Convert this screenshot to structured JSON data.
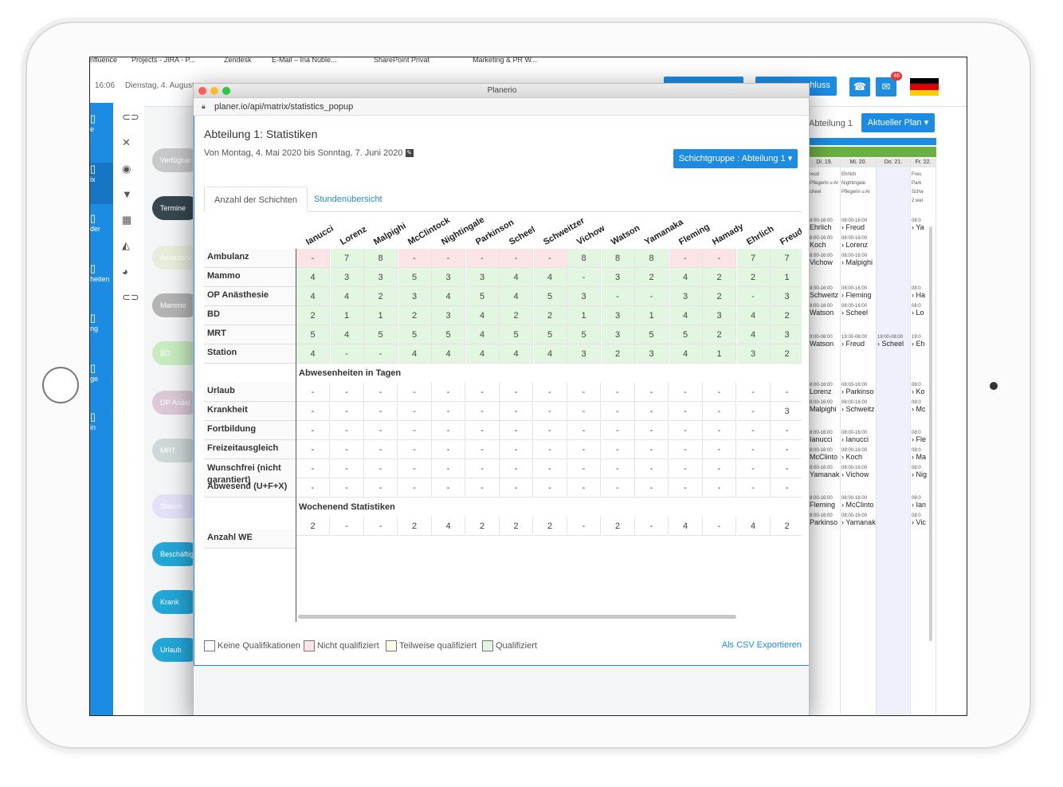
{
  "bookmarks": [
    "nfluence",
    "Projects - JIRA - P...",
    "Zendesk",
    "E-Mail – Ina Nüble...",
    "SharePoint Privat",
    "Marketing & PR W..."
  ],
  "header": {
    "time": "16:06",
    "date": "Dienstag, 4. August",
    "btn_right_label": "hluss",
    "mail_badge": "46"
  },
  "leftnav": [
    "e",
    "ix",
    "der",
    "heiten",
    "ng",
    "ge",
    "in"
  ],
  "pills": [
    {
      "label": "Verfügbar",
      "color": "#c9c9c9"
    },
    {
      "label": "Termine",
      "color": "#36474f"
    },
    {
      "label": "Ambulanz",
      "color": "#e8eddb"
    },
    {
      "label": "Mammo",
      "color": "#b3b3b3"
    },
    {
      "label": "BD",
      "color": "#c8ecc0"
    },
    {
      "label": "OP Anäst",
      "color": "#dcc8d6"
    },
    {
      "label": "MRT",
      "color": "#cfd8d8"
    },
    {
      "label": "Station",
      "color": "#e3e0f8"
    },
    {
      "label": "Beschäftigun",
      "color": "#23a7d8"
    },
    {
      "label": "Krank",
      "color": "#23a7d8"
    },
    {
      "label": "Urlaub",
      "color": "#23a7d8"
    }
  ],
  "calendar": {
    "title": "Abteilung 1",
    "plan_button": "Aktueller Plan ▾",
    "days": [
      "Di. 19.",
      "Mi. 20.",
      "Do. 21.",
      "Fr. 22."
    ],
    "notes_col1": [
      "reud",
      "Pflegerin u Ar",
      "cheel"
    ],
    "notes_col2": [
      "Ehrlich",
      "Nightingale",
      "Pflegerin u Ar"
    ],
    "notes_col4": [
      "Freu",
      "Park",
      "Schw",
      "2 wei"
    ],
    "entries": [
      {
        "col": 0,
        "row": 0,
        "time": "8:00-16:00",
        "name": "Ehrlich"
      },
      {
        "col": 0,
        "row": 1,
        "time": "8:00-16:00",
        "name": "Koch"
      },
      {
        "col": 0,
        "row": 2,
        "time": "8:00-16:00",
        "name": "Vichow"
      },
      {
        "col": 1,
        "row": 0,
        "time": "08:00-16:00",
        "name": "› Freud"
      },
      {
        "col": 1,
        "row": 1,
        "time": "08:00-16:00",
        "name": "› Lorenz"
      },
      {
        "col": 1,
        "row": 2,
        "time": "08:00-16:00",
        "name": "› Malpighi"
      },
      {
        "col": 3,
        "row": 0,
        "time": "08:0",
        "name": "› Ya"
      },
      {
        "col": 0,
        "row": 3,
        "time": "8:00-16:00",
        "name": "Schweitz"
      },
      {
        "col": 0,
        "row": 4,
        "time": "8:00-16:00",
        "name": "Watson"
      },
      {
        "col": 1,
        "row": 3,
        "time": "08:00-16:00",
        "name": "› Fleming"
      },
      {
        "col": 1,
        "row": 4,
        "time": "08:00-16:00",
        "name": "› Scheel"
      },
      {
        "col": 3,
        "row": 3,
        "time": "08:0",
        "name": "› Ha"
      },
      {
        "col": 3,
        "row": 4,
        "time": "08:0",
        "name": "› Lo"
      },
      {
        "col": 0,
        "row": 5,
        "time": "9:00-08:00",
        "name": "Watson"
      },
      {
        "col": 1,
        "row": 5,
        "time": "19:00-08:00",
        "name": "› Freud"
      },
      {
        "col": 2,
        "row": 5,
        "time": "19:00-08:00",
        "name": "› Scheel"
      },
      {
        "col": 3,
        "row": 5,
        "time": "19:0",
        "name": "› Eh"
      },
      {
        "col": 0,
        "row": 6,
        "time": "8:00-16:00",
        "name": "Lorenz"
      },
      {
        "col": 0,
        "row": 7,
        "time": "8:00-16:00",
        "name": "Malpighi"
      },
      {
        "col": 1,
        "row": 6,
        "time": "08:00-16:00",
        "name": "› Parkinso"
      },
      {
        "col": 1,
        "row": 7,
        "time": "08:00-16:00",
        "name": "› Schweitz"
      },
      {
        "col": 3,
        "row": 6,
        "time": "08:0",
        "name": "› Ko"
      },
      {
        "col": 3,
        "row": 7,
        "time": "08:0",
        "name": "› Mc"
      },
      {
        "col": 0,
        "row": 8,
        "time": "8:00-16:00",
        "name": "Ianucci"
      },
      {
        "col": 0,
        "row": 9,
        "time": "8:00-16:00",
        "name": "McClinto"
      },
      {
        "col": 0,
        "row": 10,
        "time": "8:00-16:00",
        "name": "Yamanak"
      },
      {
        "col": 1,
        "row": 8,
        "time": "08:00-16:00",
        "name": "› Ianucci"
      },
      {
        "col": 1,
        "row": 9,
        "time": "08:00-16:00",
        "name": "› Koch"
      },
      {
        "col": 1,
        "row": 10,
        "time": "08:00-16:00",
        "name": "› Vichow"
      },
      {
        "col": 3,
        "row": 8,
        "time": "08:0",
        "name": "› Fle"
      },
      {
        "col": 3,
        "row": 9,
        "time": "08:0",
        "name": "› Ma"
      },
      {
        "col": 3,
        "row": 10,
        "time": "08:0",
        "name": "› Nig"
      },
      {
        "col": 0,
        "row": 11,
        "time": "8:00-16:00",
        "name": "Fleming"
      },
      {
        "col": 0,
        "row": 12,
        "time": "8:00-16:00",
        "name": "Parkinso"
      },
      {
        "col": 1,
        "row": 11,
        "time": "08:00-16:00",
        "name": "› McClinto"
      },
      {
        "col": 1,
        "row": 12,
        "time": "08:00-16:00",
        "name": "› Yamanak"
      },
      {
        "col": 3,
        "row": 11,
        "time": "08:0",
        "name": "› Ian"
      },
      {
        "col": 3,
        "row": 12,
        "time": "08:0",
        "name": "› Vic"
      }
    ]
  },
  "popup": {
    "window_title": "Planerio",
    "url": "planer.io/api/matrix/statistics_popup",
    "title": "Abteilung 1: Statistiken",
    "subtitle": "Von Montag, 4. Mai 2020 bis Sonntag, 7. Juni 2020",
    "group_button": "Schichtgruppe : Abteilung 1 ▾",
    "tabs": [
      "Anzahl der Schichten",
      "Stundenübersicht"
    ],
    "employees": [
      "Ianucci",
      "Lorenz",
      "Malpighi",
      "McClintock",
      "Nightingale",
      "Parkinson",
      "Scheel",
      "Schweitzer",
      "Vichow",
      "Watson",
      "Yamanaka",
      "Fleming",
      "Hamady",
      "Ehrlich",
      "Freud"
    ],
    "shift_rows": [
      {
        "label": "Ambulanz",
        "values": [
          "-",
          "7",
          "8",
          "-",
          "-",
          "-",
          "-",
          "-",
          "8",
          "8",
          "8",
          "-",
          "-",
          "7",
          "7"
        ],
        "status": [
          "r",
          "g",
          "g",
          "r",
          "r",
          "r",
          "r",
          "r",
          "g",
          "g",
          "g",
          "r",
          "r",
          "g",
          "g"
        ]
      },
      {
        "label": "Mammo",
        "values": [
          "4",
          "3",
          "3",
          "5",
          "3",
          "3",
          "4",
          "4",
          "-",
          "3",
          "2",
          "4",
          "2",
          "2",
          "1"
        ],
        "status": [
          "g",
          "g",
          "g",
          "g",
          "g",
          "g",
          "g",
          "g",
          "g",
          "g",
          "g",
          "g",
          "g",
          "g",
          "g"
        ]
      },
      {
        "label": "OP Anästhesie",
        "values": [
          "4",
          "4",
          "2",
          "3",
          "4",
          "5",
          "4",
          "5",
          "3",
          "-",
          "-",
          "3",
          "2",
          "-",
          "3"
        ],
        "status": [
          "g",
          "g",
          "g",
          "g",
          "g",
          "g",
          "g",
          "g",
          "g",
          "g",
          "g",
          "g",
          "g",
          "g",
          "g"
        ]
      },
      {
        "label": "BD",
        "values": [
          "2",
          "1",
          "1",
          "2",
          "3",
          "4",
          "2",
          "2",
          "1",
          "3",
          "1",
          "4",
          "3",
          "4",
          "2"
        ],
        "status": [
          "g",
          "g",
          "g",
          "g",
          "g",
          "g",
          "g",
          "g",
          "g",
          "g",
          "g",
          "g",
          "g",
          "g",
          "g"
        ]
      },
      {
        "label": "MRT",
        "values": [
          "5",
          "4",
          "5",
          "5",
          "5",
          "4",
          "5",
          "5",
          "5",
          "3",
          "5",
          "5",
          "2",
          "4",
          "3"
        ],
        "status": [
          "g",
          "g",
          "g",
          "g",
          "g",
          "g",
          "g",
          "g",
          "g",
          "g",
          "g",
          "g",
          "g",
          "g",
          "g"
        ]
      },
      {
        "label": "Station",
        "values": [
          "4",
          "-",
          "-",
          "4",
          "4",
          "4",
          "4",
          "4",
          "3",
          "2",
          "3",
          "4",
          "1",
          "3",
          "2"
        ],
        "status": [
          "g",
          "g",
          "g",
          "g",
          "g",
          "g",
          "g",
          "g",
          "g",
          "g",
          "g",
          "g",
          "g",
          "g",
          "g"
        ]
      }
    ],
    "absence_title": "Abwesenheiten in Tagen",
    "absence_rows": [
      {
        "label": "Urlaub",
        "values": [
          "-",
          "-",
          "-",
          "-",
          "-",
          "-",
          "-",
          "-",
          "-",
          "-",
          "-",
          "-",
          "-",
          "-",
          "-"
        ]
      },
      {
        "label": "Krankheit",
        "values": [
          "-",
          "-",
          "-",
          "-",
          "-",
          "-",
          "-",
          "-",
          "-",
          "-",
          "-",
          "-",
          "-",
          "-",
          "3"
        ]
      },
      {
        "label": "Fortbildung",
        "values": [
          "-",
          "-",
          "-",
          "-",
          "-",
          "-",
          "-",
          "-",
          "-",
          "-",
          "-",
          "-",
          "-",
          "-",
          "-"
        ]
      },
      {
        "label": "Freizeitausgleich",
        "values": [
          "-",
          "-",
          "-",
          "-",
          "-",
          "-",
          "-",
          "-",
          "-",
          "-",
          "-",
          "-",
          "-",
          "-",
          "-"
        ]
      },
      {
        "label": "Wunschfrei (nicht garantiert)",
        "values": [
          "-",
          "-",
          "-",
          "-",
          "-",
          "-",
          "-",
          "-",
          "-",
          "-",
          "-",
          "-",
          "-",
          "-",
          "-"
        ],
        "tall": true
      },
      {
        "label": "Abwesend (U+F+X)",
        "values": [
          "-",
          "-",
          "-",
          "-",
          "-",
          "-",
          "-",
          "-",
          "-",
          "-",
          "-",
          "-",
          "-",
          "-",
          "-"
        ]
      }
    ],
    "weekend_title": "Wochenend Statistiken",
    "weekend_row": {
      "label": "Anzahl WE",
      "values": [
        "2",
        "-",
        "-",
        "2",
        "4",
        "2",
        "2",
        "2",
        "-",
        "2",
        "-",
        "4",
        "-",
        "4",
        "2"
      ]
    },
    "legend": [
      "Keine Qualifikationen",
      "Nicht qualifiziert",
      "Teilweise qualifiziert",
      "Qualifiziert"
    ],
    "legend_colors": [
      "#ffffff",
      "#fbe4e6",
      "#fffbe6",
      "#e2f6e2"
    ],
    "csv_link": "Als CSV Exportieren"
  }
}
